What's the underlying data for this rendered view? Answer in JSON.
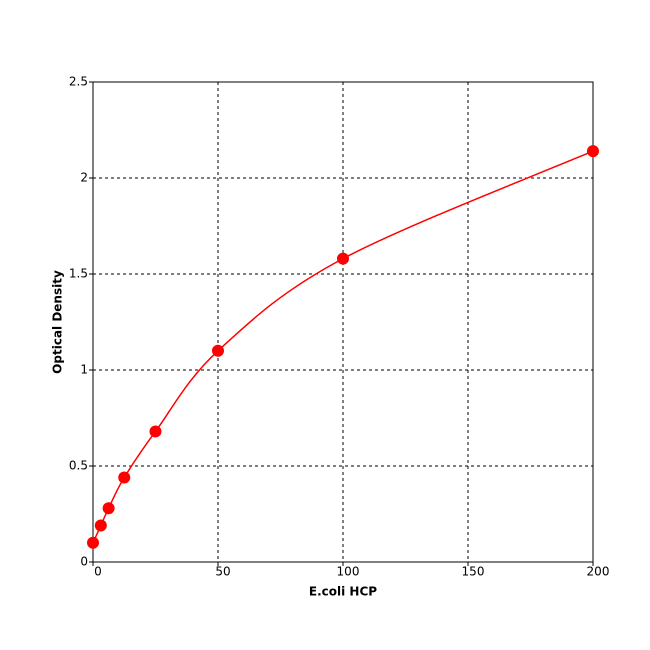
{
  "chart_data": {
    "type": "scatter",
    "x_label": "E.coli HCP",
    "y_label": "Optical Density",
    "series": [
      {
        "color": "#ff0000",
        "x": [
          0,
          3.125,
          6.25,
          12.5,
          25,
          50,
          100,
          200
        ],
        "values": [
          0.1,
          0.19,
          0.28,
          0.44,
          0.68,
          1.1,
          1.58,
          2.14
        ]
      }
    ],
    "xlim": [
      0,
      200
    ],
    "xticks": [
      0,
      50,
      100,
      150,
      200
    ],
    "ylim": [
      0,
      2.5
    ],
    "yticks": [
      0,
      0.5,
      1,
      1.5,
      2,
      2.5
    ],
    "grid": true,
    "fit_curve": true
  }
}
